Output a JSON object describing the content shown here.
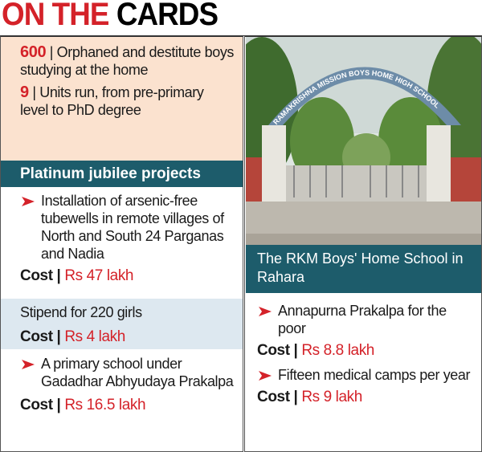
{
  "title": {
    "part1": "ON THE",
    "part2": "CARDS"
  },
  "stats": [
    {
      "figure": "600",
      "text": "| Orphaned and destitute boys studying at the home"
    },
    {
      "figure": "9",
      "text": "| Units run, from pre-primary level to PhD degree"
    }
  ],
  "projects_heading": "Platinum jubilee projects",
  "projects": [
    {
      "text": "Installation of arsenic-free tubewells in remote villages of North and South 24 Parganas and Nadia",
      "label": "Cost |",
      "amount": "Rs 47 lakh"
    },
    {
      "text": "Stipend for 220 girls",
      "label": "Cost |",
      "amount": "Rs 4 lakh"
    },
    {
      "text": "A primary school under Gadadhar Abhyudaya Prakalpa",
      "label": "Cost |",
      "amount": "Rs 16.5 lakh"
    },
    {
      "text": "Annapurna Prakalpa for the poor",
      "label": "Cost |",
      "amount": "Rs 8.8 lakh"
    },
    {
      "text": "Fifteen medical camps per year",
      "label": "Cost |",
      "amount": "Rs 9 lakh"
    }
  ],
  "photo": {
    "sign": "RAMAKRISHNA MISSION BOYS HOME HIGH SCHOOL",
    "caption": "The RKM Boys' Home School in Rahara"
  }
}
